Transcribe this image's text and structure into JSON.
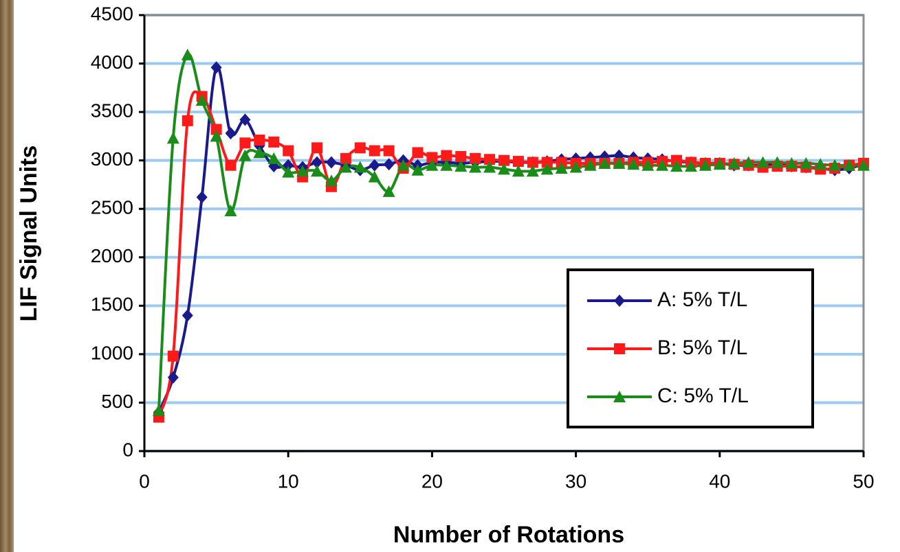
{
  "chart_data": {
    "type": "line",
    "x_label": "Number of Rotations",
    "y_label": "LIF Signal Units",
    "x": [
      1,
      2,
      3,
      4,
      5,
      6,
      7,
      8,
      9,
      10,
      11,
      12,
      13,
      14,
      15,
      16,
      17,
      18,
      19,
      20,
      21,
      22,
      23,
      24,
      25,
      26,
      27,
      28,
      29,
      30,
      31,
      32,
      33,
      34,
      35,
      36,
      37,
      38,
      39,
      40,
      41,
      42,
      43,
      44,
      45,
      46,
      47,
      48,
      49,
      50
    ],
    "series": [
      {
        "name": "A: 5% T/L",
        "color": "#1a1a8c",
        "marker": "diamond",
        "values": [
          400,
          760,
          1400,
          2620,
          3960,
          3280,
          3420,
          3150,
          2940,
          2950,
          2930,
          2980,
          2980,
          2950,
          2900,
          2950,
          2960,
          3000,
          2950,
          2980,
          2980,
          2970,
          2980,
          2990,
          2990,
          2980,
          2980,
          2990,
          3010,
          3020,
          3030,
          3040,
          3050,
          3030,
          3020,
          3010,
          2990,
          2980,
          2970,
          2970,
          2950,
          2950,
          2950,
          2960,
          2940,
          2930,
          2920,
          2900,
          2920,
          2960
        ]
      },
      {
        "name": "B: 5% T/L",
        "color": "#ff1a1a",
        "marker": "square",
        "values": [
          350,
          980,
          3410,
          3660,
          3320,
          2950,
          3180,
          3210,
          3190,
          3100,
          2830,
          3130,
          2730,
          3020,
          3130,
          3100,
          3100,
          2920,
          3080,
          3030,
          3050,
          3040,
          3020,
          3010,
          3000,
          2990,
          2980,
          2980,
          2980,
          2970,
          2970,
          2970,
          2970,
          2980,
          2980,
          2990,
          3000,
          2980,
          2970,
          2970,
          2960,
          2950,
          2930,
          2940,
          2940,
          2930,
          2910,
          2920,
          2950,
          2970
        ]
      },
      {
        "name": "C: 5% T/L",
        "color": "#1a8c1a",
        "marker": "triangle",
        "values": [
          420,
          3230,
          4090,
          3620,
          3250,
          2480,
          3050,
          3080,
          3020,
          2880,
          2890,
          2890,
          2790,
          2930,
          2930,
          2830,
          2680,
          2950,
          2900,
          2950,
          2950,
          2940,
          2930,
          2930,
          2910,
          2890,
          2890,
          2910,
          2920,
          2930,
          2950,
          2970,
          2970,
          2960,
          2950,
          2950,
          2940,
          2940,
          2950,
          2960,
          2970,
          2980,
          2980,
          2980,
          2970,
          2970,
          2960,
          2950,
          2950,
          2950
        ]
      }
    ],
    "xlim": [
      0,
      50
    ],
    "xticks": [
      0,
      10,
      20,
      30,
      40,
      50
    ],
    "ylim": [
      0,
      4500
    ],
    "yticks": [
      0,
      500,
      1000,
      1500,
      2000,
      2500,
      3000,
      3500,
      4000,
      4500
    ],
    "grid": true,
    "smooth": true,
    "legend_position": "lower right"
  }
}
